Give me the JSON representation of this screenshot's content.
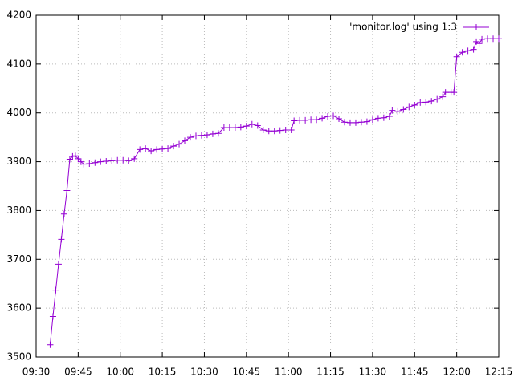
{
  "chart_data": {
    "type": "line",
    "legend": "top-right",
    "grid": true,
    "xlim": [
      "09:30",
      "12:15"
    ],
    "xticks": [
      "09:30",
      "09:45",
      "10:00",
      "10:15",
      "10:30",
      "10:45",
      "11:00",
      "11:15",
      "11:30",
      "11:45",
      "12:00",
      "12:15"
    ],
    "ylim": [
      3500,
      4200
    ],
    "yticks": [
      3500,
      3600,
      3700,
      3800,
      3900,
      4000,
      4100,
      4200
    ],
    "x": [
      "09:35",
      "09:36",
      "09:37",
      "09:38",
      "09:39",
      "09:40",
      "09:41",
      "09:42",
      "09:43",
      "09:44",
      "09:45",
      "09:46",
      "09:47",
      "09:49",
      "09:51",
      "09:53",
      "09:55",
      "09:57",
      "09:59",
      "10:01",
      "10:03",
      "10:05",
      "10:07",
      "10:09",
      "10:11",
      "10:13",
      "10:15",
      "10:17",
      "10:19",
      "10:21",
      "10:23",
      "10:25",
      "10:27",
      "10:29",
      "10:31",
      "10:33",
      "10:35",
      "10:37",
      "10:39",
      "10:41",
      "10:43",
      "10:45",
      "10:47",
      "10:49",
      "10:51",
      "10:53",
      "10:55",
      "10:57",
      "10:59",
      "11:01",
      "11:02",
      "11:04",
      "11:06",
      "11:08",
      "11:10",
      "11:12",
      "11:14",
      "11:16",
      "11:18",
      "11:20",
      "11:22",
      "11:24",
      "11:26",
      "11:28",
      "11:30",
      "11:32",
      "11:34",
      "11:36",
      "11:37",
      "11:39",
      "11:41",
      "11:43",
      "11:45",
      "11:47",
      "11:49",
      "11:51",
      "11:53",
      "11:55",
      "11:56",
      "11:58",
      "11:59",
      "12:00",
      "12:02",
      "12:04",
      "12:06",
      "12:07",
      "12:08",
      "12:09",
      "12:11",
      "12:13",
      "12:15"
    ],
    "series": [
      {
        "name": "'monitor.log' using 1:3",
        "color": "#9400d3",
        "values": [
          3525,
          3583,
          3637,
          3690,
          3741,
          3793,
          3841,
          3905,
          3911,
          3912,
          3906,
          3900,
          3895,
          3896,
          3898,
          3900,
          3901,
          3902,
          3903,
          3903,
          3902,
          3906,
          3925,
          3927,
          3922,
          3925,
          3926,
          3927,
          3932,
          3936,
          3943,
          3950,
          3953,
          3954,
          3955,
          3957,
          3958,
          3970,
          3970,
          3970,
          3971,
          3973,
          3977,
          3974,
          3965,
          3963,
          3963,
          3964,
          3965,
          3965,
          3984,
          3985,
          3985,
          3986,
          3986,
          3989,
          3993,
          3994,
          3988,
          3981,
          3980,
          3980,
          3981,
          3982,
          3986,
          3989,
          3990,
          3993,
          4005,
          4003,
          4007,
          4012,
          4016,
          4021,
          4022,
          4024,
          4028,
          4033,
          4042,
          4042,
          4042,
          4115,
          4124,
          4127,
          4130,
          4146,
          4142,
          4151,
          4152,
          4152,
          4152
        ]
      }
    ]
  }
}
